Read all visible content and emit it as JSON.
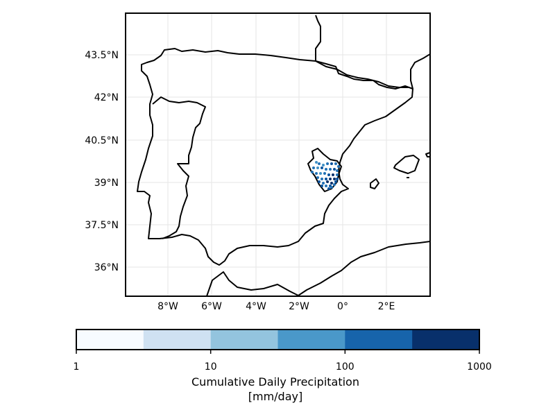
{
  "map": {
    "lat_ticks": [
      "43.5°N",
      "42°N",
      "40.5°N",
      "39°N",
      "37.5°N",
      "36°N"
    ],
    "lon_ticks": [
      "8°W",
      "6°W",
      "4°W",
      "2°W",
      "0°",
      "2°E"
    ],
    "station_color_levels": [
      "#6baed6",
      "#4292c6",
      "#2171b5",
      "#08519c",
      "#08306b"
    ]
  },
  "colorbar": {
    "scale": "log",
    "range": [
      1,
      1000
    ],
    "tick_labels": [
      "1",
      "10",
      "100",
      "1000"
    ],
    "colors": [
      "#f7fbff",
      "#cfe1f2",
      "#93c4de",
      "#4a98c9",
      "#1764ab",
      "#08306b"
    ],
    "label_line1": "Cumulative Daily Precipitation",
    "label_line2": "[mm/day]"
  }
}
